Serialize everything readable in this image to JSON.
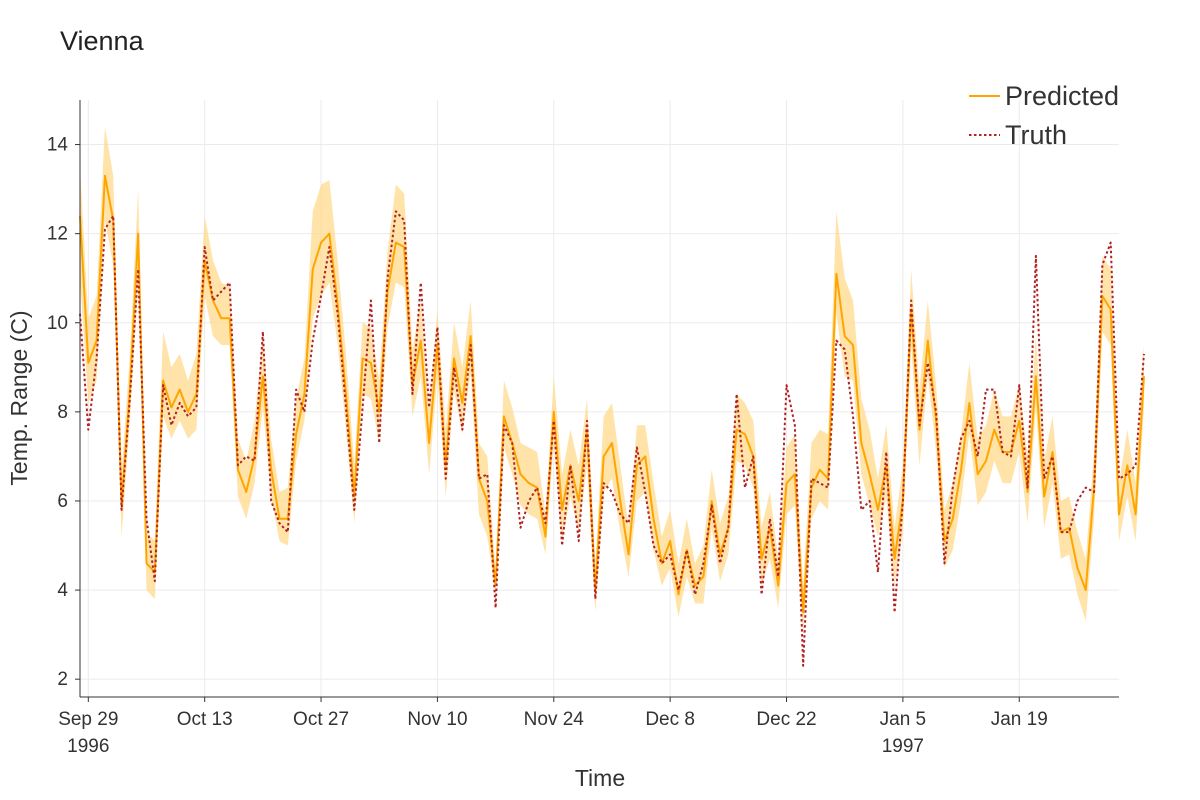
{
  "chart_data": {
    "type": "line",
    "title": "Vienna",
    "xlabel": "Time",
    "ylabel": "Temp. Range (C)",
    "ylim": [
      1.6,
      15.0
    ],
    "yticks": [
      2,
      4,
      6,
      8,
      10,
      12,
      14
    ],
    "x_start": "1996-09-28",
    "x_end": "1997-01-31",
    "xticks": [
      {
        "date": "1996-09-29",
        "label": "Sep 29",
        "sublabel": "1996"
      },
      {
        "date": "1996-10-13",
        "label": "Oct 13",
        "sublabel": ""
      },
      {
        "date": "1996-10-27",
        "label": "Oct 27",
        "sublabel": ""
      },
      {
        "date": "1996-11-10",
        "label": "Nov 10",
        "sublabel": ""
      },
      {
        "date": "1996-11-24",
        "label": "Nov 24",
        "sublabel": ""
      },
      {
        "date": "1996-12-08",
        "label": "Dec 8",
        "sublabel": ""
      },
      {
        "date": "1996-12-22",
        "label": "Dec 22",
        "sublabel": ""
      },
      {
        "date": "1997-01-05",
        "label": "Jan 5",
        "sublabel": "1997"
      },
      {
        "date": "1997-01-19",
        "label": "Jan 19",
        "sublabel": ""
      }
    ],
    "grid": true,
    "legend_position": "top-right",
    "series": [
      {
        "name": "Predicted",
        "color": "#ffa500",
        "style": "solid",
        "band_color": "#ffd98c",
        "values": [
          12.4,
          9.1,
          9.6,
          13.3,
          12.3,
          5.9,
          8.5,
          12.0,
          4.6,
          4.4,
          8.7,
          8.1,
          8.5,
          8.0,
          8.4,
          11.4,
          10.5,
          10.1,
          10.1,
          6.7,
          6.2,
          7.0,
          8.8,
          6.7,
          5.6,
          5.6,
          7.5,
          8.4,
          11.2,
          11.8,
          12.0,
          10.4,
          8.4,
          6.1,
          9.2,
          9.1,
          8.0,
          10.7,
          11.8,
          11.7,
          8.6,
          9.6,
          7.3,
          9.5,
          6.8,
          9.2,
          8.2,
          9.7,
          6.5,
          6.0,
          4.1,
          7.9,
          7.3,
          6.6,
          6.4,
          6.3,
          5.2,
          8.0,
          5.8,
          6.8,
          6.0,
          7.6,
          4.0,
          7.0,
          7.3,
          6.0,
          4.8,
          6.8,
          7.0,
          5.6,
          4.6,
          5.1,
          3.9,
          4.9,
          4.1,
          4.3,
          6.0,
          4.8,
          5.4,
          7.6,
          7.5,
          7.0,
          4.7,
          5.4,
          4.1,
          6.4,
          6.6,
          3.5,
          6.3,
          6.7,
          6.5,
          11.1,
          9.7,
          9.5,
          7.3,
          6.6,
          5.8,
          6.8,
          4.7,
          6.0,
          10.3,
          7.6,
          9.6,
          7.8,
          5.1,
          5.6,
          6.7,
          8.2,
          6.6,
          6.9,
          7.6,
          7.1,
          7.1,
          7.8,
          6.2,
          8.8,
          6.1,
          7.1,
          5.3,
          5.4,
          4.5,
          4.0,
          6.3,
          10.6,
          10.3,
          5.7,
          6.8,
          5.7,
          8.8
        ],
        "lower": [
          11.0,
          8.2,
          8.7,
          12.3,
          11.3,
          5.2,
          7.8,
          11.0,
          4.0,
          3.8,
          7.9,
          7.4,
          7.8,
          7.4,
          7.6,
          10.6,
          9.7,
          9.5,
          9.5,
          6.1,
          5.6,
          6.4,
          8.1,
          6.1,
          5.1,
          5.0,
          6.9,
          7.8,
          10.1,
          10.6,
          10.9,
          9.5,
          7.6,
          5.5,
          8.4,
          8.3,
          7.3,
          9.9,
          10.9,
          10.8,
          7.9,
          8.8,
          6.6,
          8.8,
          6.1,
          8.5,
          7.5,
          8.9,
          5.7,
          5.2,
          3.9,
          7.2,
          6.6,
          5.9,
          5.7,
          5.6,
          4.8,
          7.3,
          5.1,
          6.1,
          5.3,
          6.8,
          3.5,
          6.2,
          6.5,
          5.3,
          4.3,
          6.0,
          6.2,
          4.9,
          4.1,
          4.5,
          3.4,
          4.3,
          3.7,
          3.7,
          5.4,
          4.2,
          4.8,
          6.9,
          6.8,
          6.3,
          4.1,
          4.7,
          3.6,
          5.7,
          5.9,
          3.0,
          5.6,
          6.0,
          5.8,
          10.2,
          8.8,
          8.7,
          6.6,
          5.9,
          5.2,
          6.1,
          4.1,
          5.3,
          9.5,
          6.8,
          8.8,
          7.1,
          4.5,
          4.9,
          6.0,
          7.5,
          5.9,
          6.2,
          6.9,
          6.4,
          6.4,
          7.1,
          5.5,
          8.1,
          5.4,
          6.4,
          4.7,
          4.8,
          3.9,
          3.3,
          5.6,
          9.8,
          9.5,
          5.1,
          6.1,
          5.1,
          8.1
        ],
        "upper": [
          13.5,
          10.1,
          10.6,
          14.4,
          13.3,
          6.6,
          9.3,
          13.0,
          5.3,
          5.1,
          9.8,
          9.0,
          9.3,
          8.7,
          9.3,
          12.4,
          11.4,
          10.9,
          10.8,
          7.4,
          6.9,
          7.8,
          9.7,
          7.4,
          6.2,
          6.3,
          8.3,
          9.2,
          12.5,
          13.1,
          13.2,
          11.4,
          9.3,
          6.8,
          10.0,
          9.9,
          8.7,
          11.6,
          13.1,
          12.9,
          9.4,
          10.5,
          8.0,
          10.3,
          7.6,
          10.0,
          9.0,
          10.5,
          7.3,
          7.0,
          4.4,
          8.7,
          8.1,
          7.3,
          7.2,
          7.1,
          5.7,
          8.8,
          6.6,
          7.6,
          6.8,
          8.3,
          4.6,
          7.9,
          8.2,
          6.8,
          5.4,
          7.7,
          7.7,
          6.4,
          5.2,
          5.8,
          4.6,
          5.6,
          4.6,
          5.0,
          6.7,
          5.5,
          6.1,
          8.4,
          8.2,
          7.8,
          5.4,
          6.2,
          4.7,
          7.2,
          7.5,
          4.1,
          7.3,
          7.6,
          7.5,
          12.5,
          11.0,
          10.5,
          8.3,
          7.6,
          6.5,
          7.7,
          5.4,
          6.8,
          11.2,
          8.5,
          10.5,
          8.6,
          5.8,
          6.4,
          7.5,
          9.1,
          7.4,
          7.7,
          8.5,
          7.9,
          7.9,
          8.6,
          7.0,
          9.7,
          6.9,
          7.9,
          6.0,
          6.1,
          5.3,
          4.7,
          7.1,
          11.5,
          11.2,
          6.4,
          7.6,
          6.4,
          9.5
        ]
      },
      {
        "name": "Truth",
        "color": "#b22222",
        "style": "dotted",
        "values": [
          10.2,
          7.6,
          9.2,
          12.1,
          12.4,
          5.8,
          8.3,
          11.2,
          5.6,
          4.2,
          8.6,
          7.7,
          8.2,
          7.9,
          8.1,
          11.7,
          10.5,
          10.7,
          10.9,
          6.8,
          7.0,
          6.9,
          9.8,
          6.0,
          5.5,
          5.3,
          8.5,
          8.0,
          9.6,
          10.6,
          11.7,
          10.2,
          8.1,
          5.8,
          8.1,
          10.5,
          7.3,
          11.0,
          12.5,
          12.3,
          8.4,
          10.9,
          8.1,
          9.9,
          6.5,
          9.0,
          7.6,
          9.5,
          6.5,
          6.6,
          3.6,
          7.7,
          7.3,
          5.4,
          6.0,
          6.3,
          5.5,
          7.8,
          5.0,
          6.8,
          5.1,
          7.8,
          3.8,
          6.4,
          6.2,
          5.7,
          5.5,
          7.2,
          6.2,
          5.0,
          4.6,
          4.8,
          4.0,
          4.9,
          3.9,
          4.6,
          5.9,
          4.6,
          5.4,
          8.4,
          6.3,
          7.0,
          3.9,
          5.6,
          4.3,
          8.6,
          7.7,
          2.3,
          6.5,
          6.4,
          6.3,
          9.6,
          9.4,
          7.9,
          5.8,
          6.0,
          4.4,
          7.1,
          3.5,
          6.0,
          10.5,
          7.7,
          9.1,
          8.0,
          4.6,
          6.3,
          7.4,
          7.8,
          7.0,
          8.5,
          8.5,
          7.1,
          7.0,
          8.6,
          6.3,
          11.5,
          6.5,
          7.0,
          5.3,
          5.3,
          6.0,
          6.3,
          6.2,
          11.3,
          11.8,
          6.5,
          6.6,
          6.8,
          9.3
        ]
      }
    ]
  }
}
